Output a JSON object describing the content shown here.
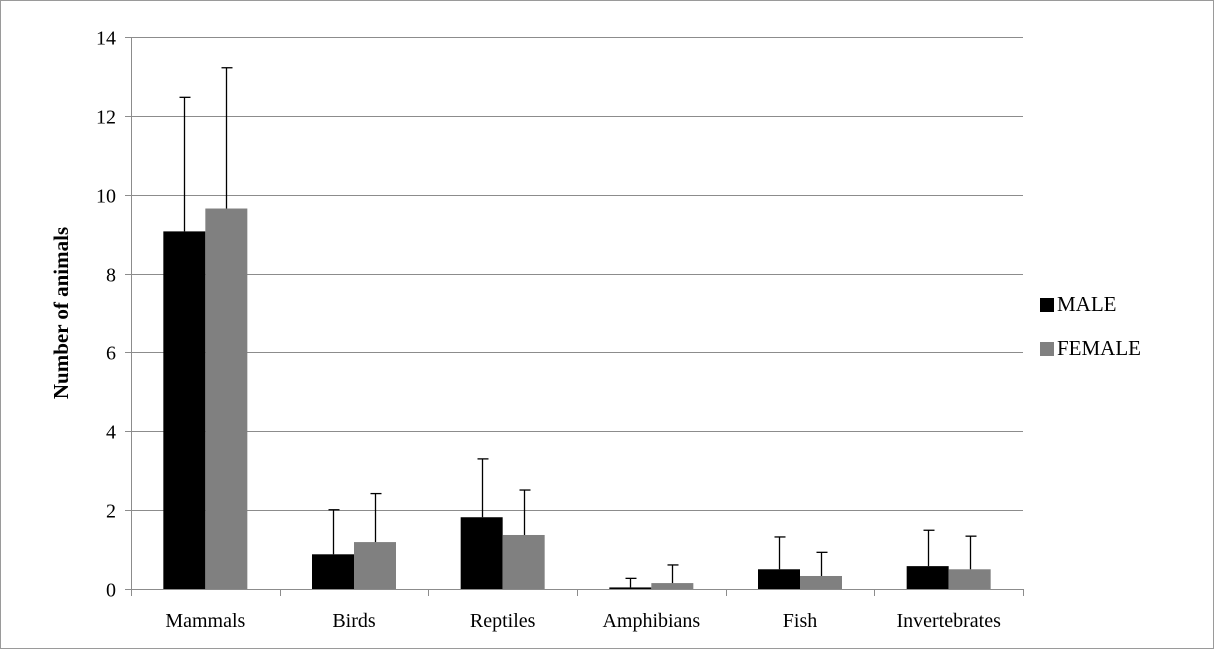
{
  "chart_data": {
    "type": "bar",
    "title": "",
    "xlabel": "",
    "ylabel": "Number of animals",
    "ylim": [
      0,
      14
    ],
    "yticks": [
      0,
      2,
      4,
      6,
      8,
      10,
      12,
      14
    ],
    "grid": true,
    "legend_position": "right",
    "categories": [
      "Mammals",
      "Birds",
      "Reptiles",
      "Amphibians",
      "Fish",
      "Invertebrates"
    ],
    "series": [
      {
        "name": "MALE",
        "color": "#000000",
        "values": [
          9.07,
          0.88,
          1.82,
          0.04,
          0.5,
          0.58
        ],
        "error_upper": [
          3.4,
          1.13,
          1.48,
          0.23,
          0.82,
          0.91
        ]
      },
      {
        "name": "FEMALE",
        "color": "#808080",
        "values": [
          9.65,
          1.19,
          1.37,
          0.15,
          0.33,
          0.5
        ],
        "error_upper": [
          3.57,
          1.23,
          1.14,
          0.46,
          0.6,
          0.84
        ]
      }
    ]
  }
}
